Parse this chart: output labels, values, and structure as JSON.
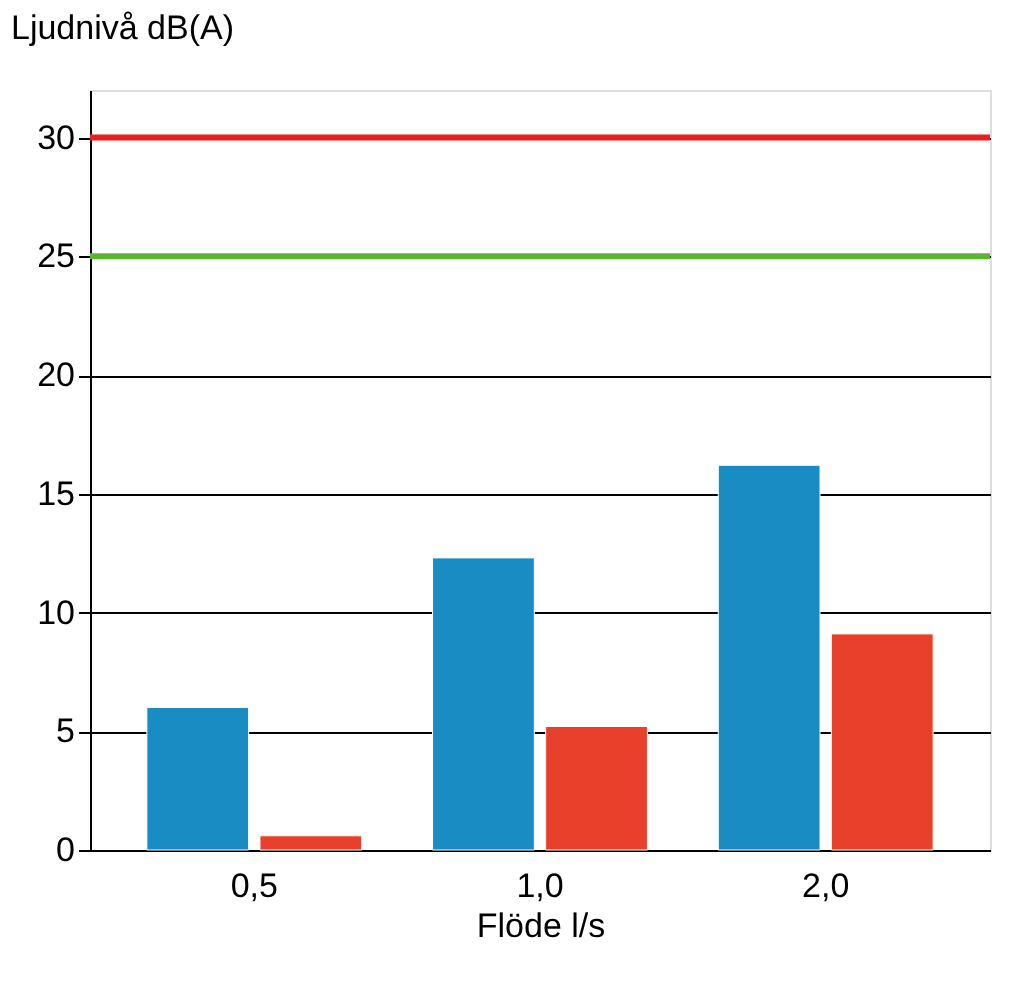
{
  "chart_data": {
    "type": "bar",
    "xlabel": "Flöde l/s",
    "ylabel": "Ljudnivå dB(A)",
    "categories": [
      "0,5",
      "1,0",
      "2,0"
    ],
    "series": [
      {
        "color": "#1a8cc4",
        "values": [
          6.0,
          12.3,
          16.2
        ]
      },
      {
        "color": "#e8402a",
        "values": [
          0.6,
          5.2,
          9.1
        ]
      }
    ],
    "ylim": [
      0,
      32
    ],
    "yticks": [
      0,
      5,
      10,
      15,
      20,
      25,
      30
    ],
    "grid": "y",
    "legend": false,
    "ref_lines": [
      {
        "axis": "y",
        "value": 30,
        "label": null,
        "color": "#e8201e"
      },
      {
        "axis": "y",
        "value": 25,
        "label": null,
        "color": "#5cb531"
      }
    ]
  }
}
